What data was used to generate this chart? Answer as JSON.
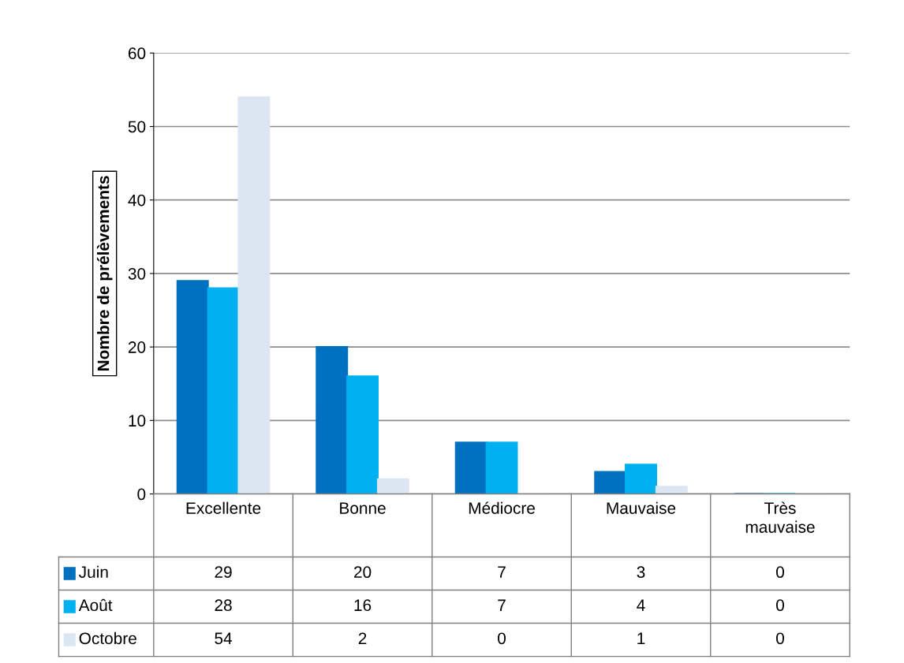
{
  "chart_data": {
    "type": "bar",
    "ylabel": "Nombre de prélèvements",
    "categories": [
      "Excellente",
      "Bonne",
      "Médiocre",
      "Mauvaise",
      "Très\nmauvaise"
    ],
    "series": [
      {
        "name": "Juin",
        "color": "#0070c0",
        "values": [
          29,
          20,
          7,
          3,
          0
        ]
      },
      {
        "name": "Août",
        "color": "#00b0f0",
        "values": [
          28,
          16,
          7,
          4,
          0
        ]
      },
      {
        "name": "Octobre",
        "color": "#dce6f2",
        "values": [
          54,
          2,
          0,
          1,
          0
        ]
      }
    ],
    "ylim": [
      0,
      60
    ],
    "yticks": [
      0,
      10,
      20,
      30,
      40,
      50,
      60
    ],
    "grid": "y",
    "data_labels": true,
    "legend": "bottom",
    "tick_labels": "y"
  }
}
